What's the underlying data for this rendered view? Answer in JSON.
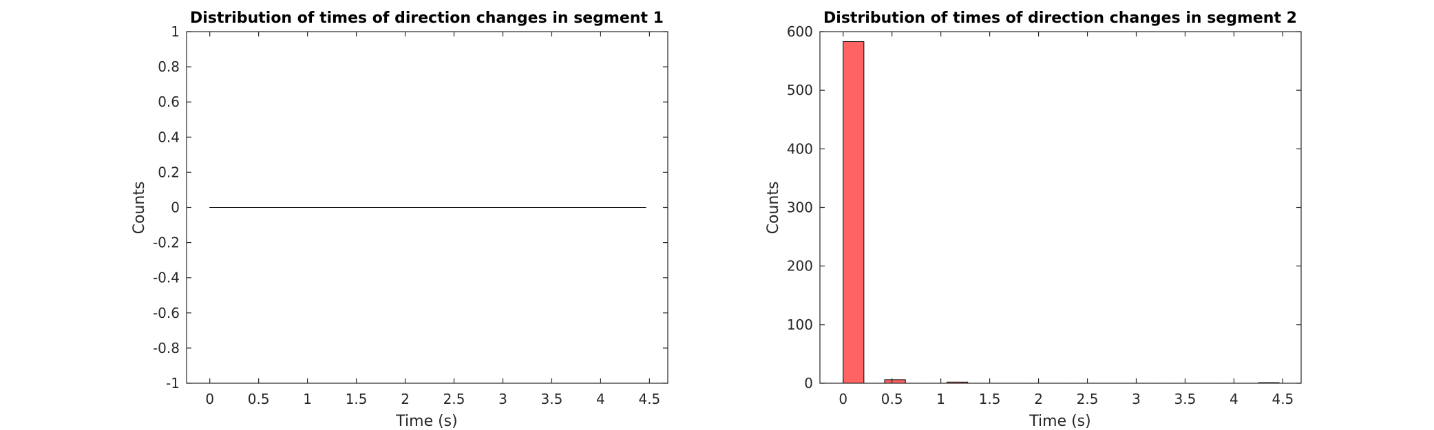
{
  "colors": {
    "bar_fill": "#ff6363",
    "bar_stroke": "#000000",
    "axis": "#262626"
  },
  "chart_data": [
    {
      "type": "bar",
      "title": "Distribution of times of direction changes in segment 1",
      "xlabel": "Time (s)",
      "ylabel": "Counts",
      "xlim": [
        -0.2375,
        4.6875
      ],
      "ylim": [
        -1,
        1
      ],
      "xticks": [
        0,
        0.5,
        1,
        1.5,
        2,
        2.5,
        3,
        3.5,
        4,
        4.5
      ],
      "xtick_labels": [
        "0",
        "0.5",
        "1",
        "1.5",
        "2",
        "2.5",
        "3",
        "3.5",
        "4",
        "4.5"
      ],
      "yticks": [
        -1,
        -0.8,
        -0.6,
        -0.4,
        -0.2,
        0,
        0.2,
        0.4,
        0.6,
        0.8,
        1
      ],
      "ytick_labels": [
        "-1",
        "-0.8",
        "-0.6",
        "-0.4",
        "-0.2",
        "0",
        "0.2",
        "0.4",
        "0.6",
        "0.8",
        "1"
      ],
      "bin_width": 0.2125,
      "x": [
        0.10625,
        0.31875,
        0.53125,
        0.74375,
        0.95625,
        1.16875,
        1.38125,
        1.59375,
        1.80625,
        2.01875,
        2.23125,
        2.44375,
        2.65625,
        2.86875,
        3.08125,
        3.29375,
        3.50625,
        3.71875,
        3.93125,
        4.14375,
        4.35625
      ],
      "values": [
        0,
        0,
        0,
        0,
        0,
        0,
        0,
        0,
        0,
        0,
        0,
        0,
        0,
        0,
        0,
        0,
        0,
        0,
        0,
        0,
        0
      ],
      "grid": false,
      "legend": "none"
    },
    {
      "type": "bar",
      "title": "Distribution of times of direction changes in segment 2",
      "xlabel": "Time (s)",
      "ylabel": "Counts",
      "xlim": [
        -0.2375,
        4.6875
      ],
      "ylim": [
        0,
        600
      ],
      "xticks": [
        0,
        0.5,
        1,
        1.5,
        2,
        2.5,
        3,
        3.5,
        4,
        4.5
      ],
      "xtick_labels": [
        "0",
        "0.5",
        "1",
        "1.5",
        "2",
        "2.5",
        "3",
        "3.5",
        "4",
        "4.5"
      ],
      "yticks": [
        0,
        100,
        200,
        300,
        400,
        500,
        600
      ],
      "ytick_labels": [
        "0",
        "100",
        "200",
        "300",
        "400",
        "500",
        "600"
      ],
      "bin_width": 0.2125,
      "x": [
        0.10625,
        0.31875,
        0.53125,
        0.74375,
        0.95625,
        1.16875,
        1.38125,
        1.59375,
        1.80625,
        2.01875,
        2.23125,
        2.44375,
        2.65625,
        2.86875,
        3.08125,
        3.29375,
        3.50625,
        3.71875,
        3.93125,
        4.14375,
        4.35625
      ],
      "values": [
        583,
        0,
        6,
        0,
        0,
        2,
        0,
        0,
        0,
        0,
        0,
        0,
        0,
        0,
        0,
        0,
        0,
        0,
        0,
        0,
        1
      ],
      "grid": false,
      "legend": "none"
    }
  ]
}
